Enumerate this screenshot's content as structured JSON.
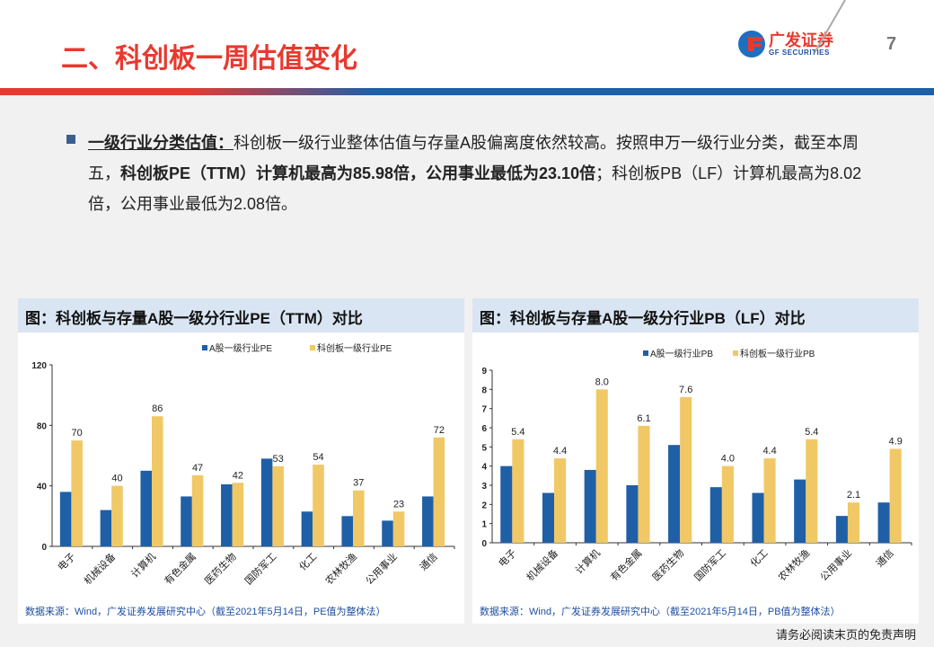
{
  "header": {
    "title": "二、科创板一周估值变化",
    "logo_cn": "广发证券",
    "logo_en": "GF SECURITIES",
    "page_number": "7"
  },
  "body": {
    "lead": "一级行业分类估值：",
    "text1": "科创板一级行业整体估值与存量A股偏离度依然较高。按照申万一级行业分类，截至本周五，",
    "bold": "科创板PE（TTM）计算机最高为85.98倍，公用事业最低为23.10倍",
    "text2": "；科创板PB（LF）计算机最高为8.02倍，公用事业最低为2.08倍。"
  },
  "footer": "请务必阅读末页的免责声明",
  "colors": {
    "a_share": "#1f5fa6",
    "star": "#f0c865"
  },
  "chart_data": [
    {
      "type": "bar",
      "title": "图：科创板与存量A股一级分行业PE（TTM）对比",
      "source": "数据来源：Wind，广发证券发展研究中心（截至2021年5月14日，PE值为整体法）",
      "categories": [
        "电子",
        "机械设备",
        "计算机",
        "有色金属",
        "医药生物",
        "国防军工",
        "化工",
        "农林牧渔",
        "公用事业",
        "通信"
      ],
      "series": [
        {
          "name": "A股一级行业PE",
          "values": [
            36,
            24,
            50,
            33,
            41,
            58,
            23,
            20,
            17,
            33
          ]
        },
        {
          "name": "科创板一级行业PE",
          "values": [
            70,
            40,
            86,
            47,
            42,
            53,
            54,
            37,
            23,
            72
          ],
          "labels": [
            "70",
            "40",
            "86",
            "47",
            "42",
            "53",
            "54",
            "37",
            "23",
            "72"
          ]
        }
      ],
      "ylim": [
        0,
        120
      ],
      "yticks": [
        "0",
        "40",
        "80",
        "120"
      ],
      "legend": "top"
    },
    {
      "type": "bar",
      "title": "图：科创板与存量A股一级分行业PB（LF）对比",
      "source": "数据来源：Wind，广发证券发展研究中心（截至2021年5月14日，PB值为整体法）",
      "categories": [
        "电子",
        "机械设备",
        "计算机",
        "有色金属",
        "医药生物",
        "国防军工",
        "化工",
        "农林牧渔",
        "公用事业",
        "通信"
      ],
      "series": [
        {
          "name": "A股一级行业PB",
          "values": [
            4.0,
            2.6,
            3.8,
            3.0,
            5.1,
            2.9,
            2.6,
            3.3,
            1.4,
            2.1
          ]
        },
        {
          "name": "科创板一级行业PB",
          "values": [
            5.4,
            4.4,
            8.0,
            6.1,
            7.6,
            4.0,
            4.4,
            5.4,
            2.1,
            4.9
          ],
          "labels": [
            "5.4",
            "4.4",
            "8.0",
            "6.1",
            "7.6",
            "4.0",
            "4.4",
            "5.4",
            "2.1",
            "4.9"
          ]
        }
      ],
      "ylim": [
        0,
        9
      ],
      "yticks": [
        "0",
        "1",
        "2",
        "3",
        "4",
        "5",
        "6",
        "7",
        "8",
        "9"
      ],
      "legend": "top"
    }
  ]
}
